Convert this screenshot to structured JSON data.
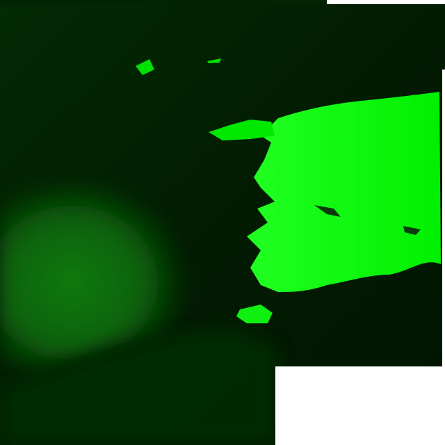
{
  "image": {
    "kind": "satellite-false-color-green-channel",
    "colors": {
      "dark": "#001a00",
      "mid": "#0a6a0a",
      "bright": "#00f000",
      "nodata": "#ffffff"
    }
  }
}
